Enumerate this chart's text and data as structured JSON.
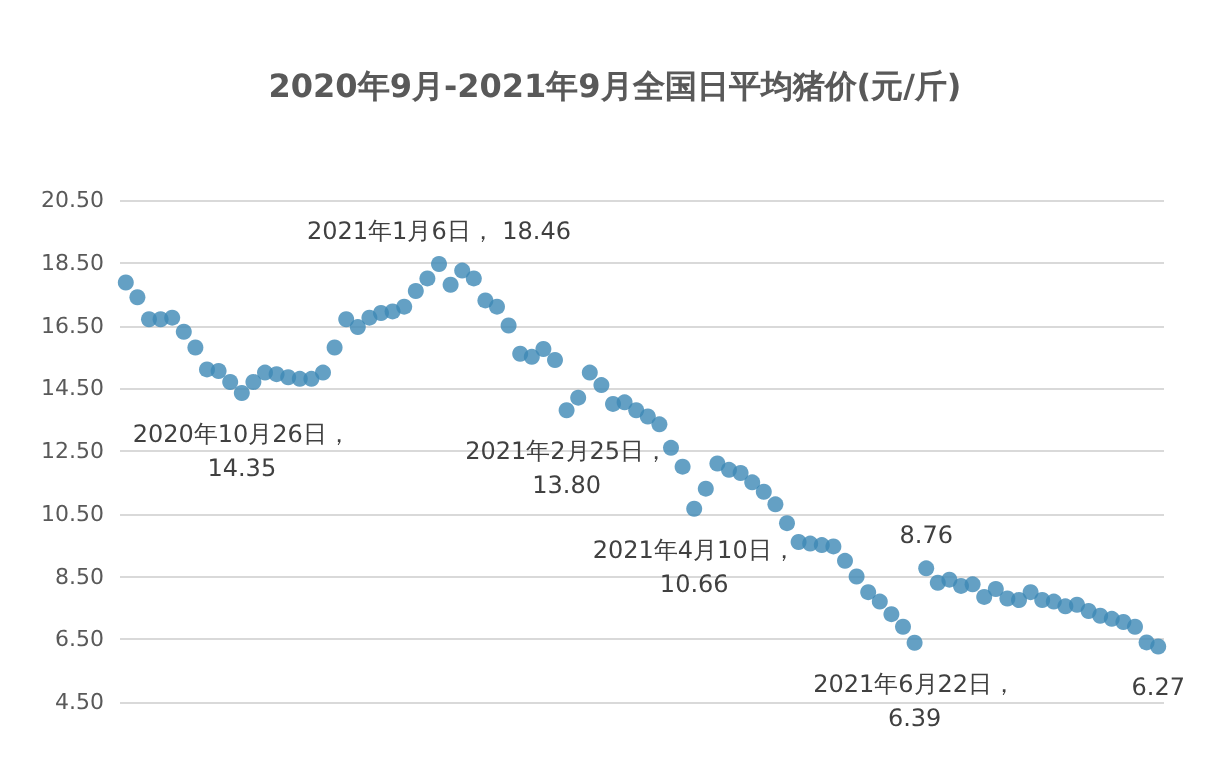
{
  "chart_data": {
    "type": "scatter",
    "title": "2020年9月-2021年9月全国日平均猪价(元/斤)",
    "categories": [
      null,
      null,
      null,
      null,
      null,
      null,
      null,
      null,
      null,
      null,
      null,
      null,
      null,
      null,
      null,
      null,
      null,
      null,
      null,
      null,
      null,
      null,
      null,
      null,
      null,
      null,
      null,
      null,
      null,
      null,
      null,
      null,
      null,
      null,
      null,
      null,
      null,
      null,
      null,
      null,
      null,
      null,
      null,
      null,
      null,
      null,
      null,
      null,
      null,
      null,
      null,
      null,
      null,
      null,
      null,
      null,
      null,
      null,
      null,
      null,
      null,
      null,
      null,
      null,
      null,
      null,
      null,
      null,
      null,
      null,
      null,
      null,
      null,
      null,
      null,
      null,
      null,
      null,
      null,
      null,
      null,
      null,
      null,
      null,
      null,
      null,
      null,
      null,
      null,
      null
    ],
    "values": [
      17.87,
      17.4,
      16.7,
      16.7,
      16.75,
      16.3,
      15.8,
      15.1,
      15.05,
      14.7,
      14.35,
      14.7,
      15.0,
      14.95,
      14.85,
      14.8,
      14.8,
      15.0,
      15.8,
      16.7,
      16.45,
      16.75,
      16.9,
      16.95,
      17.1,
      17.6,
      18.0,
      18.46,
      17.8,
      18.25,
      18.0,
      17.3,
      17.1,
      16.5,
      15.6,
      15.5,
      15.75,
      15.4,
      13.8,
      14.2,
      15.0,
      14.6,
      14.0,
      14.05,
      13.8,
      13.6,
      13.35,
      12.6,
      12.0,
      10.66,
      11.3,
      12.1,
      11.9,
      11.8,
      11.5,
      11.2,
      10.8,
      10.2,
      9.6,
      9.55,
      9.5,
      9.46,
      9.0,
      8.5,
      8.0,
      7.7,
      7.3,
      6.9,
      6.39,
      8.76,
      8.3,
      8.4,
      8.2,
      8.25,
      7.85,
      8.1,
      7.8,
      7.75,
      8.0,
      7.75,
      7.7,
      7.55,
      7.6,
      7.4,
      7.25,
      7.15,
      7.05,
      6.9,
      6.4,
      6.27
    ],
    "color": "#3d88b5",
    "marker": "circle",
    "ylim": [
      4.5,
      20.5
    ],
    "yticks": [
      {
        "value": 4.5,
        "label": "4.50"
      },
      {
        "value": 6.5,
        "label": "6.50"
      },
      {
        "value": 8.5,
        "label": "8.50"
      },
      {
        "value": 10.5,
        "label": "10.50"
      },
      {
        "value": 12.5,
        "label": "12.50"
      },
      {
        "value": 14.5,
        "label": "14.50"
      },
      {
        "value": 16.5,
        "label": "16.50"
      },
      {
        "value": 18.5,
        "label": "18.50"
      },
      {
        "value": 20.5,
        "label": "20.50"
      }
    ],
    "grid": "y",
    "tick_labels": "y",
    "annotations": [
      {
        "text": "2020年10月26日，\n14.35",
        "y": 14.35
      },
      {
        "text": "2021年1月6日， 18.46",
        "y": 18.46
      },
      {
        "text": "2021年2月25日，\n13.80",
        "y": 13.8
      },
      {
        "text": "2021年4月10日，\n10.66",
        "y": 10.66
      },
      {
        "text": "2021年6月22日，\n6.39",
        "y": 6.39
      },
      {
        "text": "8.76",
        "y": 8.76
      },
      {
        "text": "6.27",
        "y": 6.27
      }
    ]
  }
}
